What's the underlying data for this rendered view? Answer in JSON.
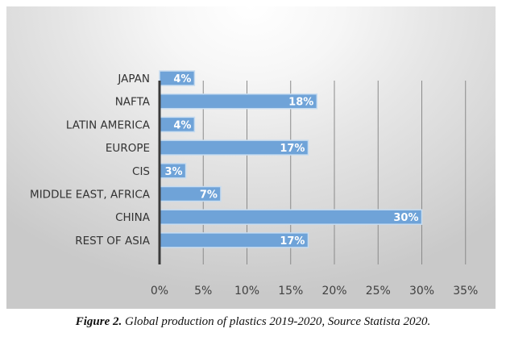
{
  "chart_data": {
    "type": "bar",
    "orientation": "horizontal",
    "categories": [
      "JAPAN",
      "NAFTA",
      "LATIN AMERICA",
      "EUROPE",
      "CIS",
      "MIDDLE EAST, AFRICA",
      "CHINA",
      "REST OF ASIA"
    ],
    "values": [
      4,
      18,
      4,
      17,
      3,
      7,
      30,
      17
    ],
    "data_labels": [
      "4%",
      "18%",
      "4%",
      "17%",
      "3%",
      "7%",
      "30%",
      "17%"
    ],
    "xticks": [
      "0%",
      "5%",
      "10%",
      "15%",
      "20%",
      "25%",
      "30%",
      "35%"
    ],
    "xlim": [
      0,
      35
    ],
    "grid": "vertical",
    "bar_color": "#6fa3d8",
    "title": "",
    "xlabel": "",
    "ylabel": ""
  },
  "caption": {
    "label": "Figure 2.",
    "text": " Global production of plastics 2019-2020, Source Statista 2020."
  }
}
